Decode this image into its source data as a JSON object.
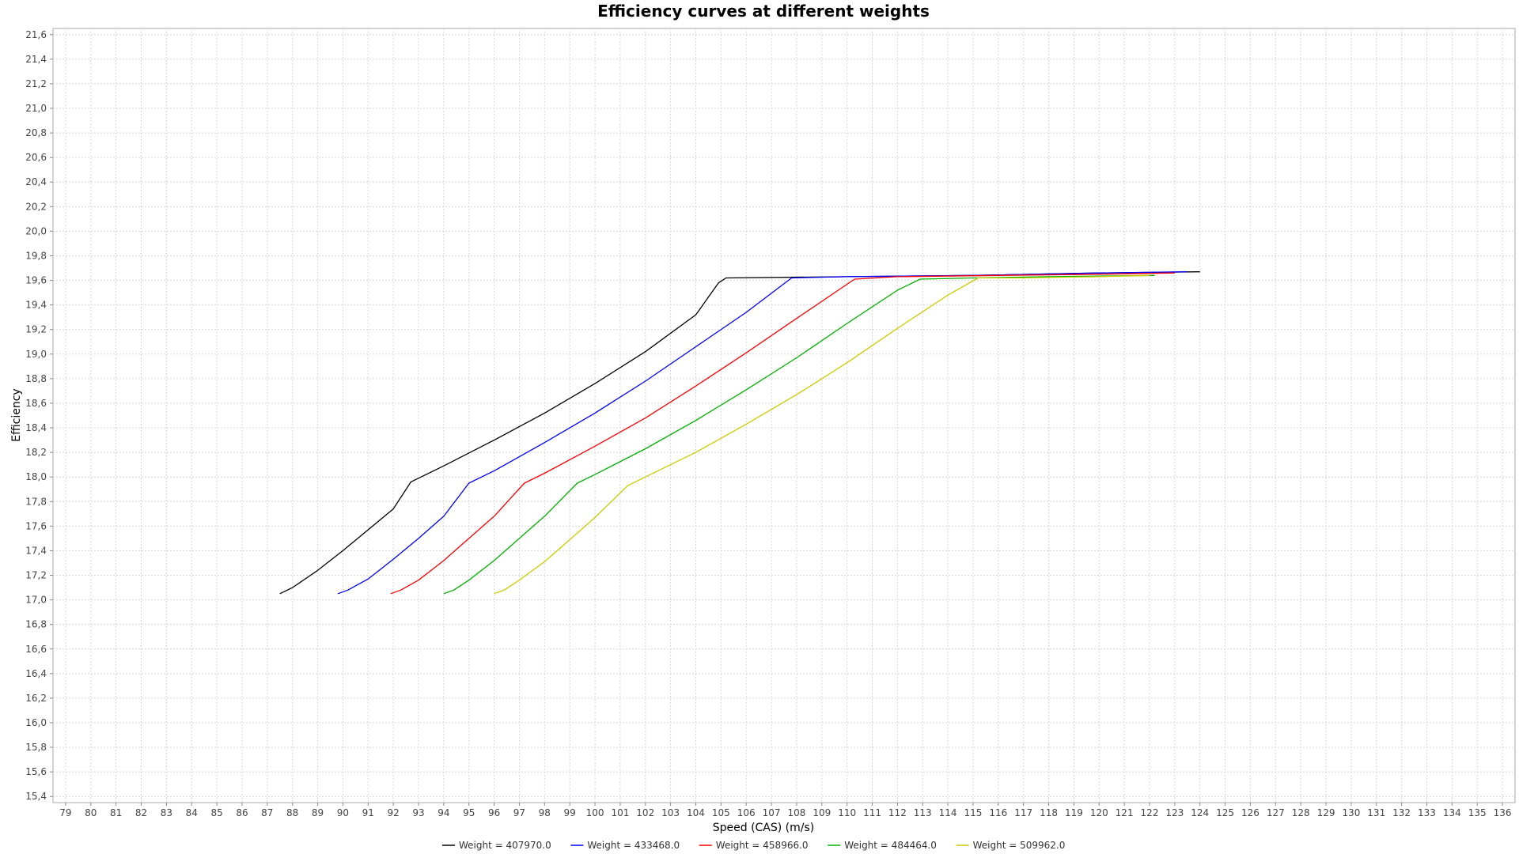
{
  "chart_data": {
    "type": "line",
    "title": "Efficiency curves at different weights",
    "xlabel": "Speed (CAS) (m/s)",
    "ylabel": "Efficiency",
    "xlim": [
      78.5,
      136.5
    ],
    "ylim": [
      15.35,
      21.65
    ],
    "x_ticks": [
      "79",
      "80",
      "81",
      "82",
      "83",
      "84",
      "85",
      "86",
      "87",
      "88",
      "89",
      "90",
      "91",
      "92",
      "93",
      "94",
      "95",
      "96",
      "97",
      "98",
      "99",
      "100",
      "101",
      "102",
      "103",
      "104",
      "105",
      "106",
      "107",
      "108",
      "109",
      "110",
      "111",
      "112",
      "113",
      "114",
      "115",
      "116",
      "117",
      "118",
      "119",
      "120",
      "121",
      "122",
      "123",
      "124",
      "125",
      "126",
      "127",
      "128",
      "129",
      "130",
      "131",
      "132",
      "133",
      "134",
      "135",
      "136"
    ],
    "y_ticks": [
      "15,4",
      "15,6",
      "15,8",
      "16,0",
      "16,2",
      "16,4",
      "16,6",
      "16,8",
      "17,0",
      "17,2",
      "17,4",
      "17,6",
      "17,8",
      "18,0",
      "18,2",
      "18,4",
      "18,6",
      "18,8",
      "19,0",
      "19,2",
      "19,4",
      "19,6",
      "19,8",
      "20,0",
      "20,2",
      "20,4",
      "20,6",
      "20,8",
      "21,0",
      "21,2",
      "21,4",
      "21,6"
    ],
    "grid": true,
    "legend_position": "bottom",
    "series": [
      {
        "name": "Weight = 407970.0",
        "color": "#000000",
        "points": [
          [
            87.5,
            17.05
          ],
          [
            88.0,
            17.1
          ],
          [
            89.0,
            17.24
          ],
          [
            90.0,
            17.4
          ],
          [
            91.0,
            17.57
          ],
          [
            92.0,
            17.74
          ],
          [
            92.7,
            17.96
          ],
          [
            94.0,
            18.09
          ],
          [
            96.0,
            18.3
          ],
          [
            98.0,
            18.52
          ],
          [
            100.0,
            18.76
          ],
          [
            102.0,
            19.02
          ],
          [
            104.0,
            19.32
          ],
          [
            104.9,
            19.58
          ],
          [
            105.2,
            19.62
          ],
          [
            110.0,
            19.63
          ],
          [
            115.0,
            19.64
          ],
          [
            120.0,
            19.66
          ],
          [
            124.0,
            19.67
          ]
        ]
      },
      {
        "name": "Weight = 433468.0",
        "color": "#0000ff",
        "points": [
          [
            89.8,
            17.05
          ],
          [
            90.2,
            17.08
          ],
          [
            91.0,
            17.17
          ],
          [
            92.0,
            17.33
          ],
          [
            93.0,
            17.5
          ],
          [
            94.0,
            17.68
          ],
          [
            95.0,
            17.95
          ],
          [
            96.0,
            18.05
          ],
          [
            98.0,
            18.28
          ],
          [
            100.0,
            18.52
          ],
          [
            102.0,
            18.78
          ],
          [
            104.0,
            19.06
          ],
          [
            106.0,
            19.34
          ],
          [
            107.8,
            19.62
          ],
          [
            110.0,
            19.63
          ],
          [
            115.0,
            19.64
          ],
          [
            120.0,
            19.66
          ],
          [
            123.5,
            19.67
          ]
        ]
      },
      {
        "name": "Weight = 458966.0",
        "color": "#ff0000",
        "points": [
          [
            91.9,
            17.05
          ],
          [
            92.3,
            17.08
          ],
          [
            93.0,
            17.16
          ],
          [
            94.0,
            17.32
          ],
          [
            95.0,
            17.5
          ],
          [
            96.0,
            17.68
          ],
          [
            97.2,
            17.95
          ],
          [
            98.0,
            18.03
          ],
          [
            100.0,
            18.25
          ],
          [
            102.0,
            18.48
          ],
          [
            104.0,
            18.74
          ],
          [
            106.0,
            19.01
          ],
          [
            108.0,
            19.29
          ],
          [
            110.3,
            19.61
          ],
          [
            112.0,
            19.63
          ],
          [
            116.0,
            19.64
          ],
          [
            120.0,
            19.65
          ],
          [
            123.0,
            19.66
          ]
        ]
      },
      {
        "name": "Weight = 484464.0",
        "color": "#00b000",
        "points": [
          [
            94.0,
            17.05
          ],
          [
            94.4,
            17.08
          ],
          [
            95.0,
            17.16
          ],
          [
            96.0,
            17.32
          ],
          [
            97.0,
            17.5
          ],
          [
            98.0,
            17.68
          ],
          [
            99.3,
            17.95
          ],
          [
            100.0,
            18.02
          ],
          [
            102.0,
            18.23
          ],
          [
            104.0,
            18.46
          ],
          [
            106.0,
            18.71
          ],
          [
            108.0,
            18.97
          ],
          [
            110.0,
            19.25
          ],
          [
            112.0,
            19.52
          ],
          [
            112.9,
            19.61
          ],
          [
            115.0,
            19.62
          ],
          [
            118.0,
            19.63
          ],
          [
            122.2,
            19.64
          ]
        ]
      },
      {
        "name": "Weight = 509962.0",
        "color": "#cccc00",
        "points": [
          [
            96.0,
            17.05
          ],
          [
            96.4,
            17.08
          ],
          [
            97.0,
            17.16
          ],
          [
            98.0,
            17.31
          ],
          [
            99.0,
            17.49
          ],
          [
            100.0,
            17.67
          ],
          [
            101.3,
            17.93
          ],
          [
            102.0,
            18.0
          ],
          [
            104.0,
            18.2
          ],
          [
            106.0,
            18.43
          ],
          [
            108.0,
            18.67
          ],
          [
            110.0,
            18.93
          ],
          [
            112.0,
            19.21
          ],
          [
            114.0,
            19.48
          ],
          [
            115.2,
            19.62
          ],
          [
            117.0,
            19.62
          ],
          [
            120.0,
            19.63
          ],
          [
            122.0,
            19.64
          ]
        ]
      }
    ]
  }
}
